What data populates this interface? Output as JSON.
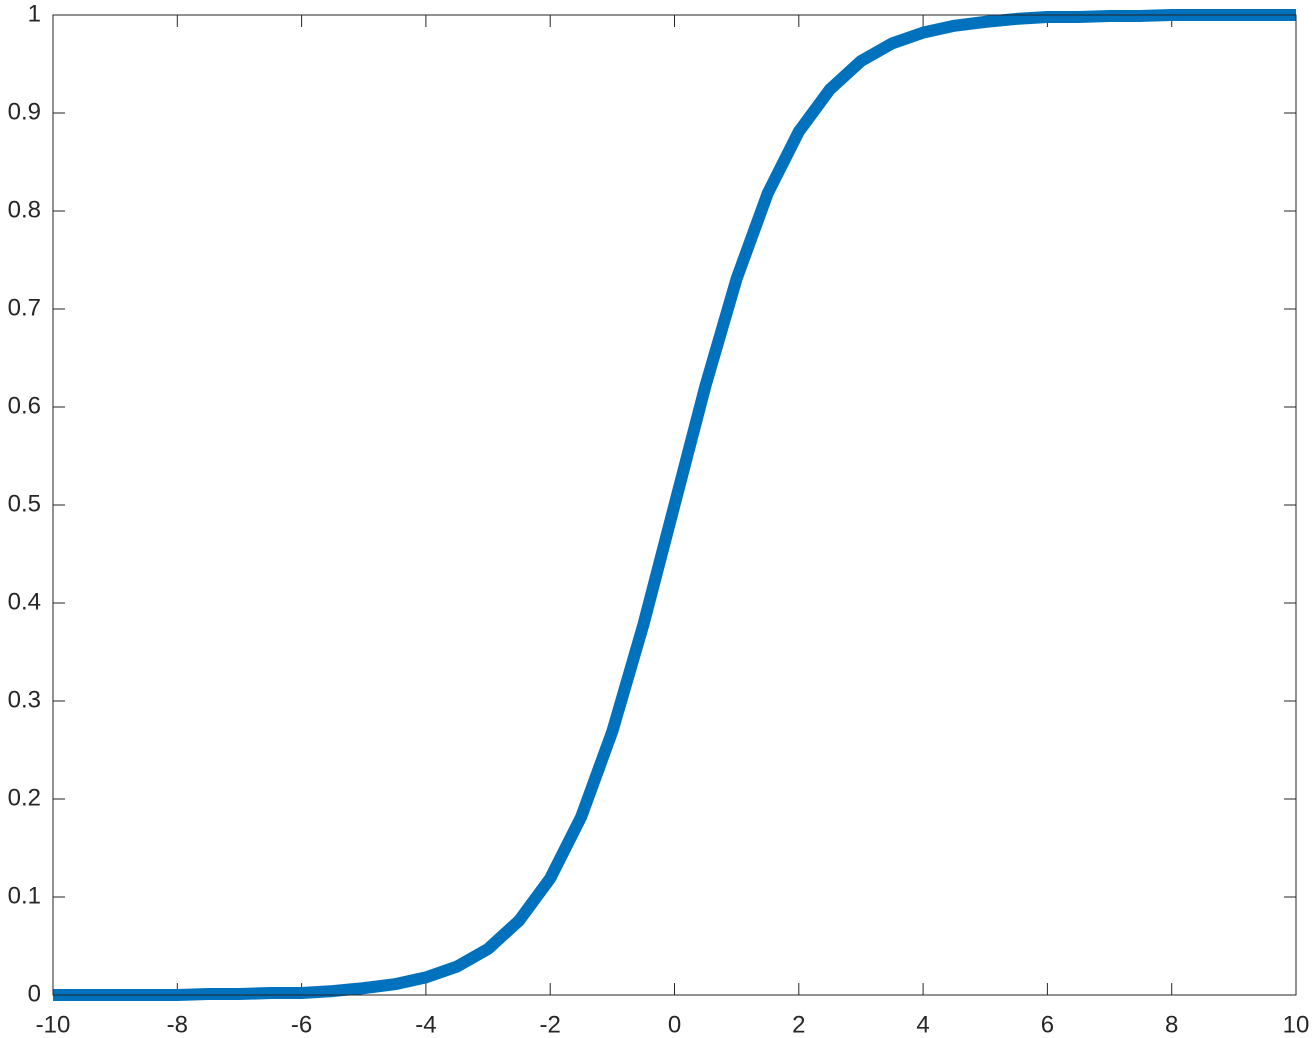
{
  "chart_data": {
    "type": "line",
    "x": [
      -10,
      -9.5,
      -9,
      -8.5,
      -8,
      -7.5,
      -7,
      -6.5,
      -6,
      -5.5,
      -5,
      -4.5,
      -4,
      -3.5,
      -3,
      -2.5,
      -2,
      -1.5,
      -1,
      -0.5,
      0,
      0.5,
      1,
      1.5,
      2,
      2.5,
      3,
      3.5,
      4,
      4.5,
      5,
      5.5,
      6,
      6.5,
      7,
      7.5,
      8,
      8.5,
      9,
      9.5,
      10
    ],
    "series": [
      {
        "color": "#0072bd",
        "values": [
          0.0,
          0.0,
          0.0,
          0.0,
          0.0,
          0.001,
          0.001,
          0.002,
          0.002,
          0.004,
          0.007,
          0.011,
          0.018,
          0.029,
          0.047,
          0.076,
          0.119,
          0.182,
          0.269,
          0.378,
          0.5,
          0.622,
          0.731,
          0.818,
          0.881,
          0.924,
          0.953,
          0.971,
          0.982,
          0.989,
          0.993,
          0.996,
          0.998,
          0.998,
          0.999,
          0.999,
          1.0,
          1.0,
          1.0,
          1.0,
          1.0
        ]
      }
    ],
    "xlim": [
      -10,
      10
    ],
    "ylim": [
      0,
      1
    ],
    "xticks": [
      -10,
      -8,
      -6,
      -4,
      -2,
      0,
      2,
      4,
      6,
      8,
      10
    ],
    "yticks": [
      0,
      0.1,
      0.2,
      0.3,
      0.4,
      0.5,
      0.6,
      0.7,
      0.8,
      0.9,
      1
    ],
    "grid": false
  }
}
